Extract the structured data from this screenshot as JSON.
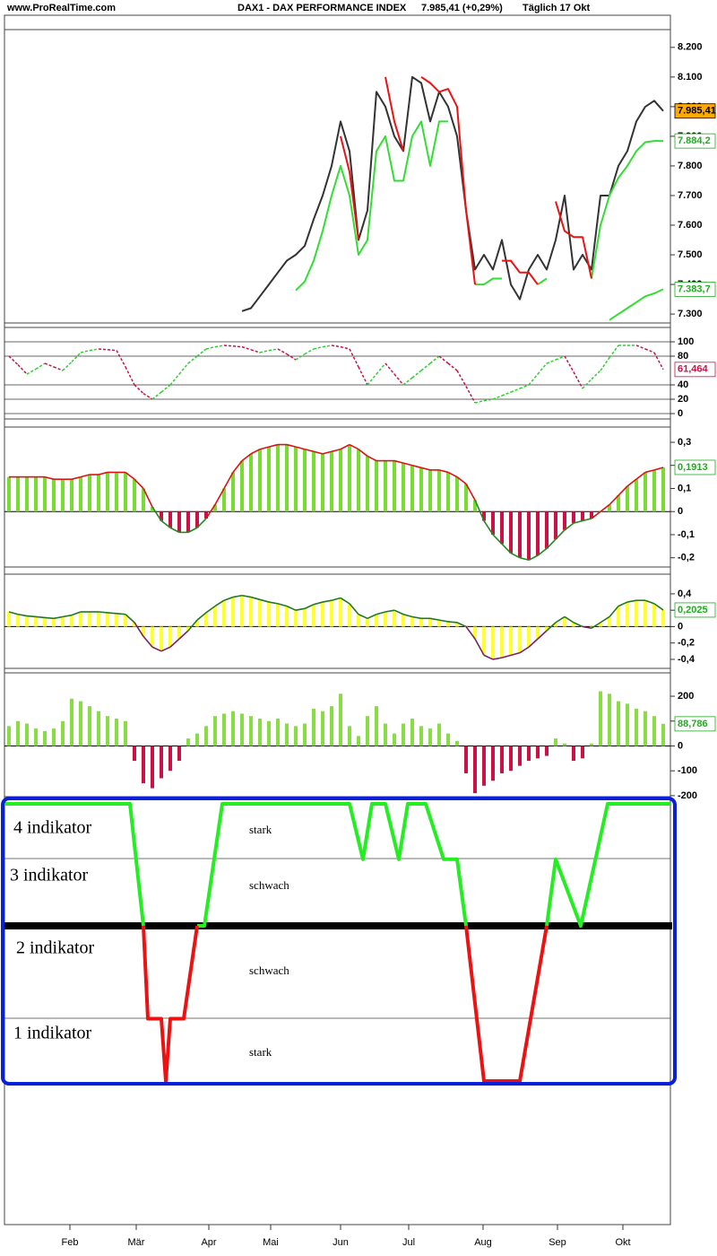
{
  "header": {
    "site": "www.ProRealTime.com",
    "instrument": "DAX1 - DAX PERFORMANCE INDEX",
    "quote": "7.985,41 (+0,29%)",
    "period": "Täglich  17 Okt"
  },
  "xaxis": {
    "xlim": [
      0,
      74.3
    ],
    "xticks": [
      {
        "value": 7.3,
        "label": "Feb"
      },
      {
        "value": 14.7,
        "label": "Mär"
      },
      {
        "value": 22.8,
        "label": "Apr"
      },
      {
        "value": 29.7,
        "label": "Mai"
      },
      {
        "value": 37.5,
        "label": "Jun"
      },
      {
        "value": 45.1,
        "label": "Jul"
      },
      {
        "value": 53.4,
        "label": "Aug"
      },
      {
        "value": 61.7,
        "label": "Sep"
      },
      {
        "value": 69.0,
        "label": "Okt"
      }
    ],
    "x": [
      0.5,
      1.5,
      2.5,
      3.5,
      4.5,
      5.5,
      6.5,
      7.5,
      8.5,
      9.5,
      10.5,
      11.5,
      12.5,
      13.5,
      14.5,
      15.5,
      16.5,
      17.5,
      18.5,
      19.5,
      20.5,
      21.5,
      22.5,
      23.5,
      24.5,
      25.5,
      26.5,
      27.5,
      28.5,
      29.5,
      30.5,
      31.5,
      32.5,
      33.5,
      34.5,
      35.5,
      36.5,
      37.5,
      38.5,
      39.5,
      40.5,
      41.5,
      42.5,
      43.5,
      44.5,
      45.5,
      46.5,
      47.5,
      48.5,
      49.5,
      50.5,
      51.5,
      52.5,
      53.5,
      54.5,
      55.5,
      56.5,
      57.5,
      58.5,
      59.5,
      60.5,
      61.5,
      62.5,
      63.5,
      64.5,
      65.5,
      66.5,
      67.5,
      68.5,
      69.5,
      70.5,
      71.5,
      72.5,
      73.5
    ]
  },
  "chart_data": [
    {
      "type": "line",
      "ylim": [
        7270,
        8260
      ],
      "yticks": [
        {
          "value": 7300,
          "label": "7.300"
        },
        {
          "value": 7400,
          "label": "7.400"
        },
        {
          "value": 7500,
          "label": "7.500"
        },
        {
          "value": 7600,
          "label": "7.600"
        },
        {
          "value": 7700,
          "label": "7.700"
        },
        {
          "value": 7800,
          "label": "7.800"
        },
        {
          "value": 7900,
          "label": "7.900"
        },
        {
          "value": 8000,
          "label": "8.000"
        },
        {
          "value": 8100,
          "label": "8.100"
        },
        {
          "value": 8200,
          "label": "8.200"
        }
      ],
      "series": [
        {
          "color": "#333333",
          "values": [
            null,
            null,
            null,
            null,
            null,
            null,
            null,
            null,
            null,
            null,
            null,
            null,
            null,
            null,
            null,
            null,
            null,
            null,
            null,
            null,
            null,
            null,
            null,
            null,
            null,
            null,
            7310,
            7320,
            7360,
            7400,
            7440,
            7480,
            7500,
            7530,
            7620,
            7700,
            7800,
            7950,
            7850,
            7550,
            7650,
            8050,
            8000,
            7900,
            7850,
            8100,
            8080,
            7950,
            8050,
            8000,
            7900,
            7650,
            7450,
            7500,
            7450,
            7550,
            7400,
            7350,
            7450,
            7500,
            7450,
            7550,
            7700,
            7450,
            7500,
            7450,
            7700,
            7700,
            7800,
            7850,
            7950,
            8000,
            8020,
            7985.41
          ],
          "last_label": "7.985,41",
          "label_fill": "#ffaa00",
          "label_color": "#000000"
        },
        {
          "color": "#33dd33",
          "values": [
            null,
            null,
            null,
            null,
            null,
            null,
            null,
            null,
            null,
            null,
            null,
            null,
            null,
            null,
            null,
            null,
            null,
            null,
            null,
            null,
            null,
            null,
            null,
            null,
            null,
            null,
            null,
            null,
            null,
            null,
            null,
            null,
            7380,
            7410,
            7480,
            7580,
            7700,
            7800,
            7700,
            7500,
            7550,
            7850,
            7900,
            7750,
            7750,
            7900,
            7950,
            7800,
            7950,
            7950,
            null,
            null,
            7400,
            7400,
            7420,
            7420,
            null,
            null,
            null,
            7400,
            7420,
            null,
            null,
            null,
            null,
            7420,
            7600,
            7700,
            7760,
            7800,
            7850,
            7880,
            7884.2,
            7884.2
          ],
          "last_label": "7.884,2",
          "label_fill": "#ffffff",
          "label_color": "#22aa22"
        },
        {
          "color": "#ee1111",
          "values": [
            null,
            null,
            null,
            null,
            null,
            null,
            null,
            null,
            null,
            null,
            null,
            null,
            null,
            null,
            null,
            null,
            null,
            null,
            null,
            null,
            null,
            null,
            null,
            null,
            null,
            null,
            null,
            null,
            null,
            null,
            null,
            null,
            null,
            null,
            null,
            null,
            null,
            7900,
            7780,
            7550,
            null,
            null,
            8100,
            7950,
            7850,
            null,
            8100,
            8080,
            8050,
            8060,
            8000,
            7650,
            7400,
            null,
            null,
            7480,
            7480,
            7440,
            7440,
            7400,
            null,
            7680,
            7580,
            7560,
            7560,
            7420,
            null,
            null,
            null,
            null,
            null,
            null,
            null,
            null
          ]
        },
        {
          "color": "#33dd33",
          "values": [
            null,
            null,
            null,
            null,
            null,
            null,
            null,
            null,
            null,
            null,
            null,
            null,
            null,
            null,
            null,
            null,
            null,
            null,
            null,
            null,
            null,
            null,
            null,
            null,
            null,
            null,
            null,
            null,
            null,
            null,
            null,
            null,
            null,
            null,
            null,
            null,
            null,
            null,
            null,
            null,
            null,
            null,
            null,
            null,
            null,
            null,
            null,
            null,
            null,
            null,
            null,
            null,
            null,
            null,
            null,
            null,
            null,
            null,
            null,
            null,
            null,
            null,
            null,
            null,
            null,
            null,
            null,
            7280,
            7300,
            7320,
            7340,
            7360,
            7370,
            7383.7
          ],
          "last_label": "7.383,7",
          "label_fill": "#ffffff",
          "label_color": "#22aa22"
        }
      ]
    },
    {
      "type": "line",
      "ylim": [
        -7.5,
        120
      ],
      "yticks": [
        100,
        80,
        40,
        20,
        0
      ],
      "grid": true,
      "series": [
        {
          "rise_color": "#33cc33",
          "fall_color": "#cc1144",
          "values": [
            80,
            68,
            55,
            62,
            70,
            65,
            60,
            72,
            85,
            88,
            90,
            89,
            88,
            65,
            40,
            28,
            20,
            30,
            40,
            55,
            70,
            80,
            90,
            93,
            95,
            94,
            93,
            89,
            85,
            88,
            90,
            83,
            75,
            83,
            90,
            93,
            95,
            93,
            90,
            65,
            40,
            55,
            70,
            55,
            40,
            50,
            60,
            70,
            80,
            70,
            60,
            38,
            15,
            18,
            20,
            25,
            30,
            35,
            40,
            55,
            70,
            75,
            80,
            58,
            35,
            48,
            60,
            78,
            95,
            95,
            95,
            90,
            85,
            61.464
          ],
          "last_label": "61,464",
          "label_fill": "#ffffff",
          "label_color": "#cc1144"
        }
      ]
    },
    {
      "type": "bar",
      "ylim": [
        -0.24,
        0.366
      ],
      "yticks": [
        {
          "value": 0.3,
          "label": "0,3"
        },
        {
          "value": 0.2,
          "label": "0,2"
        },
        {
          "value": 0.1,
          "label": "0,1"
        },
        0,
        {
          "value": -0.1,
          "label": "-0,1"
        },
        {
          "value": -0.2,
          "label": "-0,2"
        }
      ],
      "series": [
        {
          "pos_color": "#77dd33",
          "neg_color": "#cc1144",
          "outline_pos": "#dd1111",
          "outline_neg": "#228822",
          "values": [
            0.15,
            0.15,
            0.15,
            0.15,
            0.15,
            0.14,
            0.14,
            0.14,
            0.15,
            0.16,
            0.16,
            0.17,
            0.17,
            0.17,
            0.14,
            0.1,
            0.02,
            -0.04,
            -0.07,
            -0.09,
            -0.09,
            -0.07,
            -0.03,
            0.03,
            0.1,
            0.17,
            0.22,
            0.25,
            0.27,
            0.28,
            0.29,
            0.29,
            0.28,
            0.27,
            0.26,
            0.25,
            0.26,
            0.27,
            0.29,
            0.27,
            0.24,
            0.22,
            0.22,
            0.22,
            0.21,
            0.2,
            0.19,
            0.18,
            0.18,
            0.17,
            0.15,
            0.12,
            0.05,
            -0.04,
            -0.1,
            -0.14,
            -0.18,
            -0.2,
            -0.21,
            -0.19,
            -0.16,
            -0.12,
            -0.08,
            -0.05,
            -0.04,
            -0.03,
            0,
            0.03,
            0.07,
            0.11,
            0.14,
            0.17,
            0.18,
            0.1913
          ],
          "last_label": "0,1913",
          "label_fill": "#ffffff",
          "label_color": "#22aa22"
        }
      ]
    },
    {
      "type": "bar",
      "ylim": [
        -0.51,
        0.64
      ],
      "yticks": [
        {
          "value": 0.4,
          "label": "0,4"
        },
        {
          "value": 0.2,
          "label": "0,2"
        },
        0,
        {
          "value": -0.2,
          "label": "-0,2"
        },
        {
          "value": -0.4,
          "label": "-0,4"
        }
      ],
      "series": [
        {
          "pos_color": "#ffff33",
          "neg_color": "#ffff33",
          "outline_pos": "#227722",
          "outline_neg": "#772266",
          "values": [
            0.18,
            0.15,
            0.13,
            0.12,
            0.11,
            0.1,
            0.12,
            0.14,
            0.18,
            0.18,
            0.18,
            0.17,
            0.16,
            0.15,
            0.05,
            -0.12,
            -0.25,
            -0.3,
            -0.25,
            -0.15,
            -0.05,
            0.08,
            0.17,
            0.25,
            0.32,
            0.36,
            0.38,
            0.36,
            0.33,
            0.3,
            0.28,
            0.25,
            0.2,
            0.22,
            0.27,
            0.3,
            0.32,
            0.35,
            0.28,
            0.15,
            0.1,
            0.15,
            0.18,
            0.2,
            0.15,
            0.12,
            0.1,
            0.1,
            0.08,
            0.06,
            0.05,
            0,
            -0.15,
            -0.35,
            -0.4,
            -0.38,
            -0.35,
            -0.32,
            -0.25,
            -0.15,
            -0.05,
            0.05,
            0.12,
            0.05,
            0,
            -0.02,
            0.05,
            0.12,
            0.25,
            0.3,
            0.32,
            0.32,
            0.28,
            0.2025
          ],
          "last_label": "0,2025",
          "label_fill": "#ffffff",
          "label_color": "#22aa22"
        }
      ]
    },
    {
      "type": "bar",
      "ylim": [
        -204,
        294
      ],
      "yticks": [
        200,
        100,
        0,
        -100,
        -200
      ],
      "series": [
        {
          "pos_color": "#88dd44",
          "neg_color": "#cc1144",
          "values": [
            80,
            100,
            90,
            70,
            60,
            70,
            100,
            190,
            180,
            160,
            140,
            120,
            110,
            100,
            -60,
            -150,
            -170,
            -130,
            -100,
            -60,
            30,
            50,
            80,
            120,
            130,
            140,
            130,
            120,
            110,
            100,
            110,
            90,
            80,
            90,
            150,
            140,
            160,
            210,
            80,
            40,
            120,
            160,
            90,
            50,
            90,
            110,
            80,
            70,
            90,
            50,
            20,
            -110,
            -190,
            -160,
            -140,
            -110,
            -100,
            -80,
            -60,
            -50,
            -40,
            30,
            10,
            -60,
            -50,
            10,
            220,
            210,
            180,
            170,
            150,
            140,
            120,
            88.786
          ],
          "last_label": "88,786",
          "label_fill": "#ffffff",
          "label_color": "#22aa22"
        }
      ]
    },
    {
      "type": "line",
      "ylim": [
        0,
        4
      ],
      "x": [
        0,
        14,
        15.5,
        16,
        17.5,
        18,
        18.5,
        20,
        21.5,
        22.3,
        24.3,
        38.5,
        40,
        41,
        42.5,
        44,
        45,
        47,
        49,
        50.5,
        51.5,
        53.5,
        57.5,
        60.5,
        61.5,
        64.3,
        67.3,
        74.3
      ],
      "rows": [
        "4 indikator",
        "3 indikator",
        "2 indikator",
        "1 indikator"
      ],
      "notes": [
        "stark",
        "schwach",
        "schwach",
        "stark"
      ],
      "series": [
        {
          "color": "#22ee22",
          "values": [
            4,
            4,
            2.24,
            null,
            null,
            null,
            null,
            null,
            2.24,
            2.24,
            4,
            4,
            3.2,
            4,
            4,
            3.2,
            4,
            4,
            3.2,
            3.2,
            2.24,
            null,
            null,
            2.24,
            3.2,
            2.24,
            4,
            4
          ]
        },
        {
          "color": "#ee1111",
          "values": [
            null,
            null,
            2.24,
            0.9,
            0.9,
            0,
            0.9,
            0.9,
            2.24,
            null,
            null,
            null,
            null,
            null,
            null,
            null,
            null,
            null,
            null,
            null,
            2.24,
            0,
            0,
            2.24,
            null,
            null,
            null,
            null
          ]
        }
      ]
    }
  ]
}
